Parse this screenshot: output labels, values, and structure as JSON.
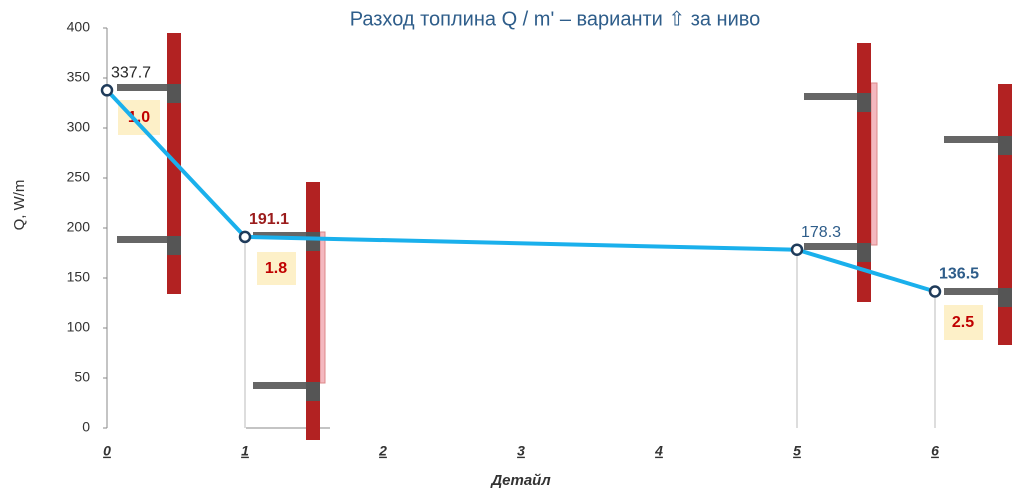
{
  "chart_data": {
    "type": "line",
    "title": "Разход топлина Q / m' – варианти ⇧ за ниво",
    "x_label": "Детайл",
    "y_label": "Q, W/m",
    "x": [
      0,
      1,
      5,
      6
    ],
    "series": [
      {
        "color": "#1ab0ec",
        "values": [
          337.7,
          191.1,
          178.3,
          136.5
        ],
        "value_label_colors": [
          "#262626",
          "#9b1c1c",
          "#2e5d8a",
          "#2e5d8a"
        ],
        "value_label_bold": [
          false,
          true,
          false,
          true
        ]
      }
    ],
    "annotations": [
      "1.0",
      "1.8",
      "2.5"
    ],
    "xlim": [
      0,
      6
    ],
    "xticks": [
      0,
      1,
      2,
      3,
      4,
      5,
      6
    ],
    "ylim": [
      0,
      400
    ],
    "yticks": [
      0,
      50,
      100,
      150,
      200,
      250,
      300,
      350,
      400
    ]
  }
}
